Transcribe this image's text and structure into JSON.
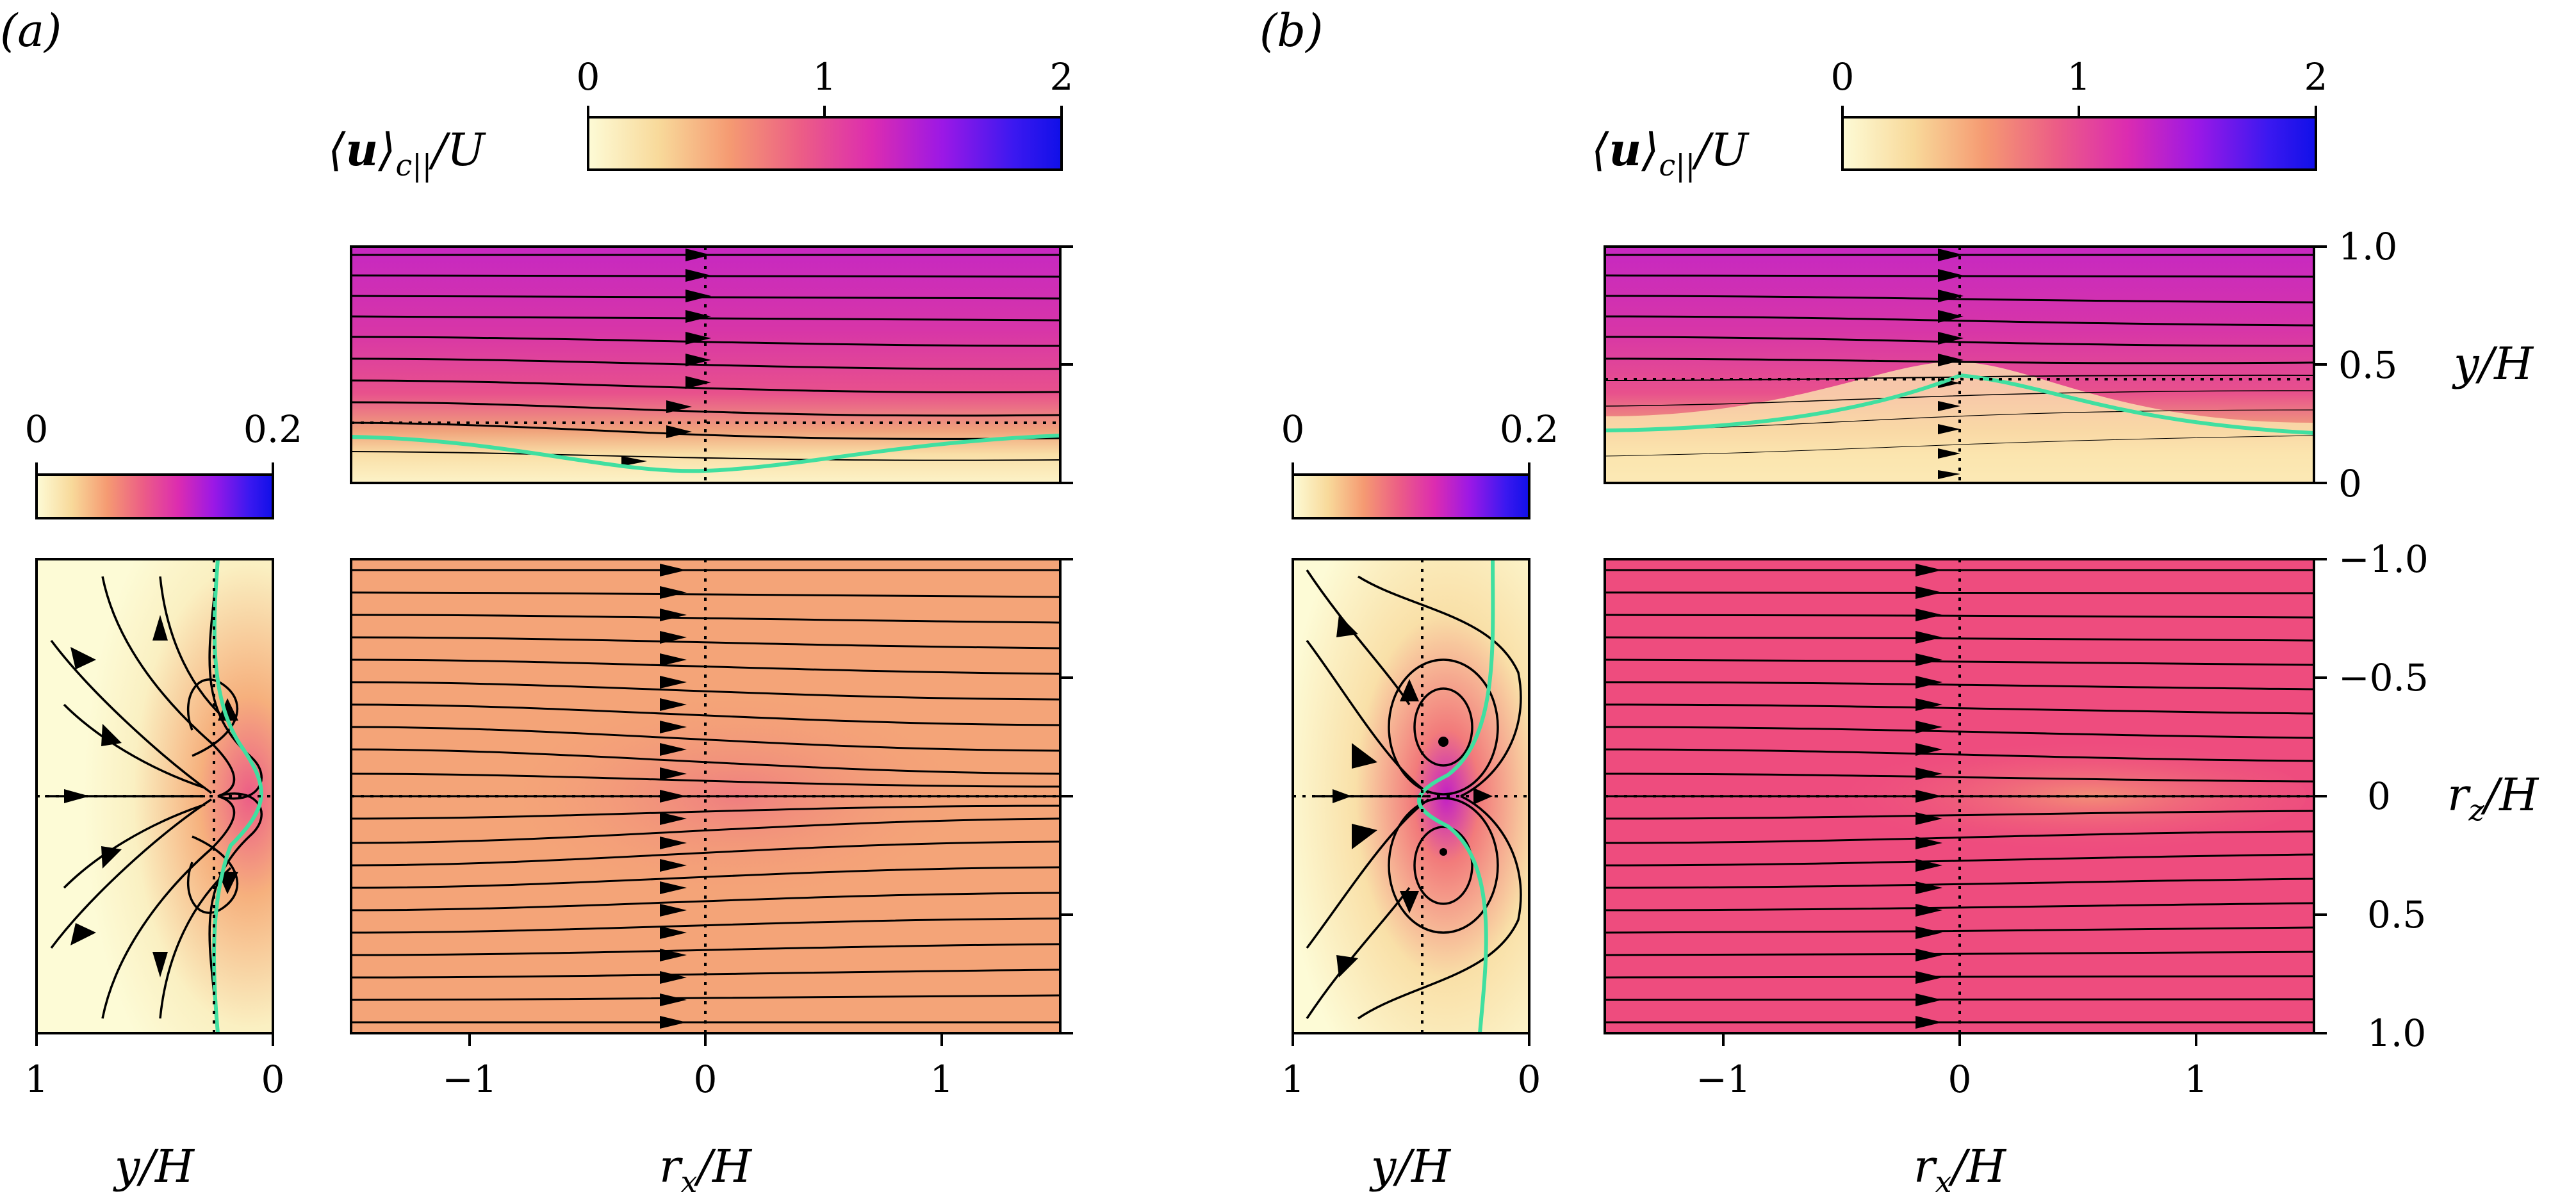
{
  "panel_labels": [
    "(a)",
    "(b)"
  ],
  "colorbar": {
    "main_ticks": [
      "0",
      "1",
      "2"
    ],
    "main_range": [
      0,
      2
    ],
    "side_ticks": [
      "0",
      "0.2"
    ],
    "side_range": [
      0,
      0.2
    ],
    "colormap": "plasma_r",
    "stops": [
      "#fdfbd6",
      "#f8d99a",
      "#f59a72",
      "#ec5d86",
      "#dc2cb0",
      "#9b18e6",
      "#3b18f0",
      "#1010e8"
    ]
  },
  "axis_labels": {
    "x_bottom": "r_x/H",
    "x_side": "y/H",
    "y_top_right": "y/H",
    "y_bottom_right": "r_z/H",
    "colorbar": "⟨u⟩_c||/U"
  },
  "ticks": {
    "rx": [
      "−1",
      "0",
      "1"
    ],
    "y_side": [
      "1",
      "0"
    ],
    "y_top": [
      "1.0",
      "0.5",
      "0"
    ],
    "rz": [
      "−1.0",
      "−0.5",
      "0",
      "0.5",
      "1.0"
    ]
  },
  "colors": {
    "green_line": "#40dfa0",
    "streamline": "#000000",
    "dotted": "#000000"
  },
  "chart_data": [
    {
      "panel": "(a)",
      "type": "heatmap",
      "description_fields": {
        "top_field": {
          "x_range": [
            -1.5,
            1.5
          ],
          "y_range": [
            0,
            1
          ],
          "value_top": 1.3,
          "value_bottom": 0.15
        },
        "bottom_field": {
          "x_range": [
            -1.5,
            1.5
          ],
          "rz_range": [
            -1,
            1
          ],
          "value": 0.62,
          "value_center_downstream": 0.8
        },
        "side_field": {
          "y_range": [
            1,
            0
          ],
          "rz_range": [
            -1,
            1
          ],
          "max_value": 0.2
        }
      },
      "green_curve_top": {
        "x": [
          -1.5,
          -1.0,
          -0.5,
          0.0,
          0.5,
          1.0,
          1.5
        ],
        "y": [
          0.19,
          0.18,
          0.1,
          0.06,
          0.1,
          0.17,
          0.19
        ]
      },
      "dotted_lines": {
        "top_y": 0.25,
        "rx": 0.0,
        "rz": 0.0,
        "side_y": 0.25
      }
    },
    {
      "panel": "(b)",
      "type": "heatmap",
      "description_fields": {
        "top_field": {
          "x_range": [
            -1.5,
            1.5
          ],
          "y_range": [
            0,
            1
          ],
          "value_top": 1.3,
          "value_bottom": 0.15
        },
        "bottom_field": {
          "x_range": [
            -1.5,
            1.5
          ],
          "rz_range": [
            -1,
            1
          ],
          "value": 1.0,
          "value_center_downstream": 0.65
        },
        "side_field": {
          "y_range": [
            1,
            0
          ],
          "rz_range": [
            -1,
            1
          ],
          "max_value": 0.2
        }
      },
      "green_curve_top": {
        "x": [
          -1.5,
          -1.0,
          -0.5,
          0.0,
          0.5,
          1.0,
          1.5
        ],
        "y": [
          0.22,
          0.24,
          0.32,
          0.44,
          0.34,
          0.25,
          0.22
        ]
      },
      "dotted_lines": {
        "top_y": 0.44,
        "rx": 0.0,
        "rz": 0.0,
        "side_y": 0.47
      }
    }
  ]
}
